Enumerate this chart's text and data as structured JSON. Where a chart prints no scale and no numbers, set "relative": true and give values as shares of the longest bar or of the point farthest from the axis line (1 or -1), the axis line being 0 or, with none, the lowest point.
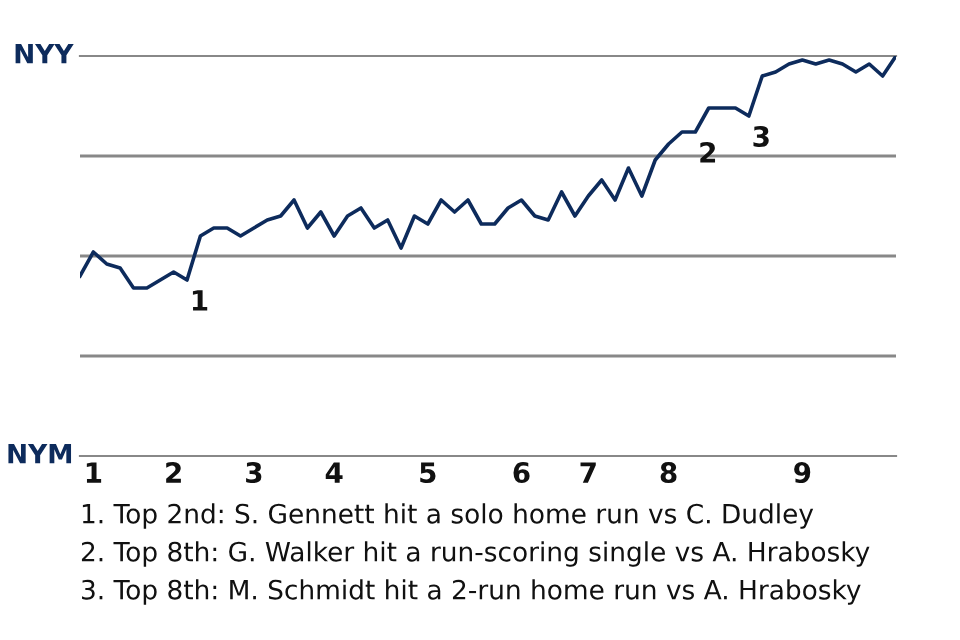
{
  "chart_data": {
    "type": "line",
    "relative": true,
    "categories": [
      null,
      "1",
      null,
      null,
      null,
      null,
      null,
      "2",
      null,
      null,
      null,
      null,
      null,
      "3",
      null,
      null,
      null,
      null,
      null,
      "4",
      null,
      null,
      null,
      null,
      null,
      null,
      "5",
      null,
      null,
      null,
      null,
      null,
      null,
      "6",
      null,
      null,
      null,
      null,
      "7",
      null,
      null,
      null,
      null,
      null,
      "8",
      null,
      null,
      null,
      null,
      null,
      null,
      null,
      null,
      null,
      "9",
      null,
      null,
      null,
      null,
      null,
      null,
      null
    ],
    "series": [
      {
        "color": "#0d2b5c",
        "values": [
          0.45,
          0.51,
          0.48,
          0.47,
          0.42,
          0.42,
          0.44,
          0.46,
          0.44,
          0.55,
          0.57,
          0.57,
          0.55,
          0.57,
          0.59,
          0.6,
          0.64,
          0.57,
          0.61,
          0.55,
          0.6,
          0.62,
          0.57,
          0.59,
          0.52,
          0.6,
          0.58,
          0.64,
          0.61,
          0.64,
          0.58,
          0.58,
          0.62,
          0.64,
          0.6,
          0.59,
          0.66,
          0.6,
          0.65,
          0.69,
          0.64,
          0.72,
          0.65,
          0.74,
          0.78,
          0.81,
          0.81,
          0.87,
          0.87,
          0.87,
          0.85,
          0.95,
          0.96,
          0.98,
          0.99,
          0.98,
          0.99,
          0.98,
          0.96,
          0.98,
          0.95,
          1
        ]
      }
    ],
    "ref_lines": [
      {
        "axis": "y",
        "value": 0.25,
        "color": "#888888"
      },
      {
        "axis": "y",
        "value": 0.5,
        "color": "#888888"
      },
      {
        "axis": "y",
        "value": 0.75,
        "color": "#888888"
      }
    ],
    "legend": false,
    "marker": "none",
    "line_style": "solid",
    "value_labels": [
      null,
      null,
      null,
      null,
      null,
      null,
      null,
      null,
      "1",
      null,
      null,
      null,
      null,
      null,
      null,
      null,
      null,
      null,
      null,
      null,
      null,
      null,
      null,
      null,
      null,
      null,
      null,
      null,
      null,
      null,
      null,
      null,
      null,
      null,
      null,
      null,
      null,
      null,
      null,
      null,
      null,
      null,
      null,
      null,
      null,
      null,
      "2",
      null,
      null,
      null,
      "3",
      null,
      null,
      null,
      null,
      null,
      null,
      null,
      null,
      null,
      null,
      null
    ],
    "annotations": [
      "NYY",
      "NYM",
      "1. Top 2nd: S. Gennett hit a solo home run vs C. Dudley",
      "2. Top 8th: G. Walker hit a run-scoring single vs A. Hrabosky",
      "3. Top 8th: M. Schmidt hit a 2-run home run vs A. Hrabosky"
    ]
  }
}
